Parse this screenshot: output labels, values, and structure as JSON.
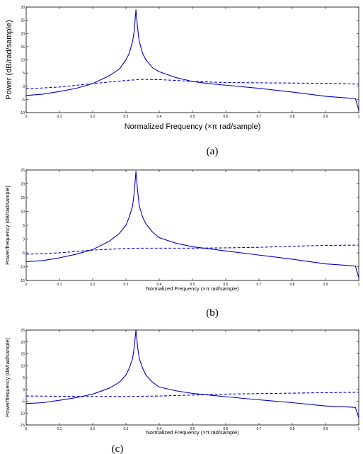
{
  "chart_data": [
    {
      "type": "line",
      "panel": "a",
      "caption": "(a)",
      "xlabel": "Normalized Frequency  (×π rad/sample)",
      "ylabel": "Power  (dB/rad/sample)",
      "xlim": [
        0,
        1
      ],
      "ylim": [
        -10,
        30
      ],
      "xticks": [
        "0",
        "0.1",
        "0.2",
        "0.3",
        "0.4",
        "0.5",
        "0.6",
        "0.7",
        "0.8",
        "0.9",
        "1"
      ],
      "yticks": [
        "-10",
        "-5",
        "0",
        "5",
        "10",
        "15",
        "20",
        "25",
        "30"
      ],
      "grid": false,
      "series": [
        {
          "style": "solid",
          "color": "#0000cc",
          "x": [
            0,
            0.05,
            0.1,
            0.15,
            0.2,
            0.25,
            0.28,
            0.3,
            0.31,
            0.32,
            0.325,
            0.33,
            0.335,
            0.34,
            0.35,
            0.36,
            0.38,
            0.4,
            0.45,
            0.5,
            0.55,
            0.6,
            0.7,
            0.8,
            0.9,
            0.95,
            0.99,
            1
          ],
          "y": [
            -3.5,
            -3,
            -2,
            -0.8,
            1,
            4,
            6.5,
            10,
            12.5,
            17,
            21,
            29,
            22,
            17,
            12.5,
            10,
            7,
            5.5,
            3.3,
            1.8,
            1,
            0.4,
            -0.8,
            -2.2,
            -3.8,
            -4.3,
            -4.7,
            -9
          ]
        },
        {
          "style": "dashed",
          "color": "#0000cc",
          "x": [
            0,
            0.1,
            0.2,
            0.3,
            0.35,
            0.4,
            0.45,
            0.5,
            0.6,
            0.7,
            0.8,
            0.9,
            1
          ],
          "y": [
            -1,
            -0.3,
            1,
            2.2,
            2.6,
            2.5,
            2.2,
            1.8,
            1.4,
            1.3,
            1.2,
            1.1,
            0.8
          ]
        }
      ]
    },
    {
      "type": "line",
      "panel": "b",
      "caption": "(b)",
      "xlabel": "Normalized Frequency  (×π rad/sample)",
      "ylabel": "Power/frequency (dB/rad/sample)",
      "xlim": [
        0,
        1
      ],
      "ylim": [
        -15,
        25
      ],
      "xticks": [
        "0",
        "0.1",
        "0.2",
        "0.3",
        "0.4",
        "0.5",
        "0.6",
        "0.7",
        "0.8",
        "0.9",
        "1"
      ],
      "yticks": [
        "-15",
        "-10",
        "-5",
        "0",
        "5",
        "10",
        "15",
        "20",
        "25"
      ],
      "grid": false,
      "series": [
        {
          "style": "solid",
          "color": "#0000cc",
          "x": [
            0,
            0.05,
            0.1,
            0.15,
            0.2,
            0.25,
            0.28,
            0.3,
            0.31,
            0.32,
            0.325,
            0.33,
            0.335,
            0.34,
            0.35,
            0.36,
            0.38,
            0.4,
            0.45,
            0.5,
            0.55,
            0.6,
            0.7,
            0.8,
            0.9,
            0.95,
            0.99,
            1
          ],
          "y": [
            -8.2,
            -7.8,
            -6.8,
            -5.5,
            -3.8,
            -0.8,
            2,
            5,
            8,
            12,
            17,
            24.5,
            17.5,
            12,
            8,
            5.5,
            2.5,
            0.5,
            -1.5,
            -2.8,
            -3.5,
            -4.3,
            -5.8,
            -7.3,
            -9,
            -9.4,
            -9.8,
            -14
          ]
        },
        {
          "style": "dashed",
          "color": "#0000cc",
          "x": [
            0,
            0.1,
            0.2,
            0.3,
            0.35,
            0.4,
            0.5,
            0.6,
            0.7,
            0.8,
            0.9,
            1
          ],
          "y": [
            -5.5,
            -5,
            -4,
            -3.4,
            -3.3,
            -3.3,
            -3.3,
            -3.2,
            -3,
            -2.6,
            -2.3,
            -2.2
          ]
        }
      ]
    },
    {
      "type": "line",
      "panel": "c",
      "caption": "(c)",
      "xlabel": "Normalized Frequency  (×π rad/sample)",
      "ylabel": "Power/frequency (dB/rad/sample)",
      "xlim": [
        0,
        1
      ],
      "ylim": [
        -15,
        25
      ],
      "xticks": [
        "0",
        "0.1",
        "0.2",
        "0.3",
        "0.4",
        "0.5",
        "0.6",
        "0.7",
        "0.8",
        "0.9",
        "1"
      ],
      "yticks": [
        "-15",
        "-10",
        "-5",
        "0",
        "5",
        "10",
        "15",
        "20",
        "25"
      ],
      "grid": false,
      "series": [
        {
          "style": "solid",
          "color": "#0000cc",
          "x": [
            0,
            0.05,
            0.1,
            0.15,
            0.2,
            0.25,
            0.28,
            0.3,
            0.31,
            0.32,
            0.325,
            0.33,
            0.335,
            0.34,
            0.35,
            0.36,
            0.38,
            0.4,
            0.45,
            0.5,
            0.55,
            0.6,
            0.7,
            0.8,
            0.9,
            0.95,
            0.99,
            1
          ],
          "y": [
            -6,
            -5.6,
            -4.6,
            -3.5,
            -2,
            0.5,
            3,
            6,
            9,
            13,
            18,
            25,
            18,
            13,
            9,
            6,
            3,
            1,
            -0.6,
            -1.7,
            -2.4,
            -3.1,
            -4.4,
            -5.6,
            -7,
            -7.3,
            -7.6,
            -12
          ]
        },
        {
          "style": "dashed",
          "color": "#0000cc",
          "x": [
            0,
            0.1,
            0.2,
            0.3,
            0.4,
            0.5,
            0.6,
            0.7,
            0.8,
            0.9,
            1
          ],
          "y": [
            -2.8,
            -2.9,
            -3,
            -3,
            -2.8,
            -2.4,
            -2,
            -1.8,
            -1.6,
            -1.4,
            -1.2
          ]
        }
      ]
    }
  ]
}
